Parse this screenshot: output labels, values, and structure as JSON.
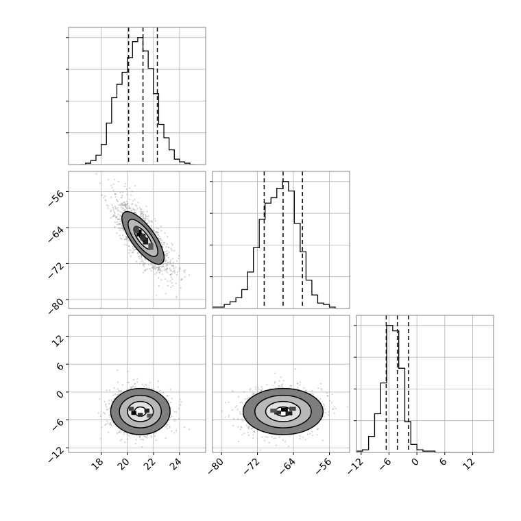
{
  "chart_data": {
    "type": "corner",
    "parameters": [
      {
        "ticks": [
          18,
          20,
          22,
          24
        ],
        "range": [
          15.5,
          26.0
        ]
      },
      {
        "ticks": [
          -80,
          -72,
          -64,
          -56
        ],
        "range": [
          -82.0,
          -51.5
        ]
      },
      {
        "ticks": [
          -12,
          -6,
          0,
          6,
          12
        ],
        "range": [
          -13.0,
          16.5
        ]
      }
    ],
    "diagonal": [
      {
        "param": 0,
        "quantiles": [
          20.1,
          21.2,
          22.3
        ],
        "bin_start": 16.4,
        "bin_width": 0.4,
        "counts": [
          0,
          1,
          3,
          7,
          15,
          31,
          50,
          60,
          69,
          80,
          92,
          95,
          85,
          72,
          53,
          30,
          20,
          11,
          4,
          2,
          1,
          0
        ]
      },
      {
        "param": 1,
        "quantiles": [
          -70.5,
          -66.3,
          -62.0
        ],
        "bin_start": -82.0,
        "bin_width": 1.3,
        "counts": [
          1,
          1,
          3,
          5,
          8,
          14,
          27,
          45,
          66,
          78,
          82,
          89,
          94,
          87,
          63,
          42,
          21,
          10,
          4,
          3,
          1
        ]
      },
      {
        "param": 2,
        "quantiles": [
          -6.6,
          -4.2,
          -1.8
        ],
        "bin_start": -13.0,
        "bin_width": 1.3,
        "counts": [
          1,
          2,
          12,
          29,
          52,
          95,
          91,
          63,
          23,
          6,
          2,
          1,
          1,
          0,
          0,
          0,
          0,
          0,
          0,
          0,
          0,
          0,
          0
        ]
      }
    ],
    "pairs": [
      {
        "x_param": 0,
        "y_param": 1,
        "mean": [
          21.2,
          -66.3
        ],
        "sd": [
          1.1,
          4.3
        ],
        "rho": -0.78,
        "peak_cells": [
          [
            20.9,
            -65.2
          ],
          [
            21.4,
            -67.0
          ],
          [
            21.2,
            -66.1
          ],
          [
            20.7,
            -64.5
          ],
          [
            21.8,
            -68.2
          ]
        ]
      },
      {
        "x_param": 0,
        "y_param": 2,
        "mean": [
          21.0,
          -4.2
        ],
        "sd": [
          1.1,
          2.4
        ],
        "rho": 0.0,
        "peak_cells": [
          [
            20.5,
            -4.5
          ],
          [
            21.5,
            -4.0
          ],
          [
            21.0,
            -4.9
          ],
          [
            20.3,
            -3.6
          ],
          [
            21.7,
            -5.1
          ]
        ]
      },
      {
        "x_param": 1,
        "y_param": 2,
        "mean": [
          -66.3,
          -4.2
        ],
        "sd": [
          4.3,
          2.4
        ],
        "rho": 0.0,
        "peak_cells": [
          [
            -66.0,
            -3.8
          ],
          [
            -65.0,
            -4.6
          ],
          [
            -67.5,
            -4.4
          ],
          [
            -64.2,
            -3.6
          ],
          [
            -68.4,
            -4.0
          ]
        ]
      }
    ],
    "contour_levels": [
      0.39,
      0.86,
      1.39,
      1.97
    ],
    "grid": true,
    "colors": {
      "line": "#000000",
      "points": "#9a9a9a",
      "grid": "#b0b0b0",
      "frame": "#808080"
    }
  }
}
